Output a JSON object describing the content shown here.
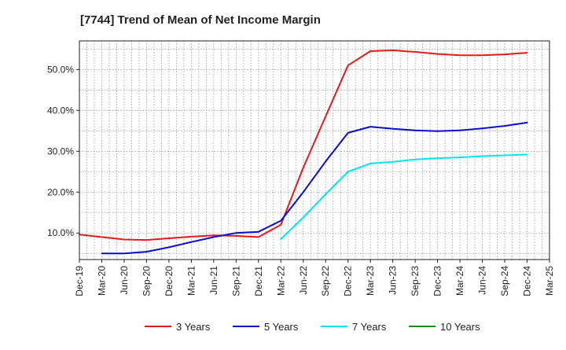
{
  "chart_data": {
    "type": "line",
    "title": "[7744]  Trend of Mean of Net Income Margin",
    "xlabel": "",
    "ylabel": "",
    "x": [
      "Dec-19",
      "Mar-20",
      "Jun-20",
      "Sep-20",
      "Dec-20",
      "Mar-21",
      "Jun-21",
      "Sep-21",
      "Dec-21",
      "Mar-22",
      "Jun-22",
      "Sep-22",
      "Dec-22",
      "Mar-23",
      "Jun-23",
      "Sep-23",
      "Dec-23",
      "Mar-24",
      "Jun-24",
      "Sep-24",
      "Dec-24",
      "Mar-25"
    ],
    "y_ticks": [
      "10.0%",
      "20.0%",
      "30.0%",
      "40.0%",
      "50.0%"
    ],
    "y_tick_values": [
      10,
      20,
      30,
      40,
      50
    ],
    "ylim": [
      3.5,
      57
    ],
    "grid": true,
    "legend_position": "bottom",
    "series": [
      {
        "name": "3 Years",
        "color": "#e31a1c",
        "values": [
          9.6,
          9.0,
          8.4,
          8.3,
          8.7,
          9.1,
          9.4,
          9.3,
          9.0,
          12.0,
          26.0,
          38.5,
          51.0,
          54.5,
          54.7,
          54.3,
          53.8,
          53.5,
          53.5,
          53.7,
          54.1,
          null
        ]
      },
      {
        "name": "5 Years",
        "color": "#0b0bd0",
        "values": [
          null,
          5.0,
          5.0,
          5.4,
          6.5,
          7.8,
          9.0,
          10.0,
          10.3,
          13.0,
          20.0,
          27.5,
          34.5,
          36.0,
          35.5,
          35.1,
          34.9,
          35.1,
          35.6,
          36.2,
          37.0,
          null
        ]
      },
      {
        "name": "7 Years",
        "color": "#00e5ee",
        "values": [
          null,
          null,
          null,
          null,
          null,
          null,
          null,
          null,
          null,
          8.5,
          13.8,
          19.5,
          25.0,
          27.0,
          27.4,
          28.0,
          28.3,
          28.5,
          28.8,
          29.0,
          29.2,
          null
        ]
      },
      {
        "name": "10 Years",
        "color": "#1a8a1a",
        "values": [
          null,
          null,
          null,
          null,
          null,
          null,
          null,
          null,
          null,
          null,
          null,
          null,
          null,
          null,
          null,
          null,
          null,
          null,
          null,
          null,
          null,
          null
        ]
      }
    ]
  }
}
